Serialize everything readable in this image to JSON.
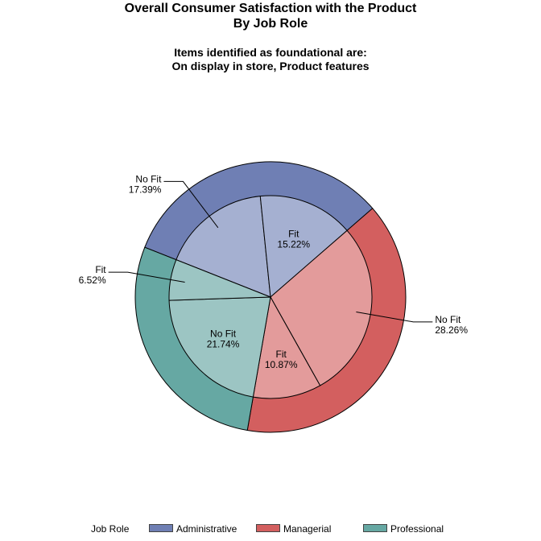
{
  "chart_data": {
    "type": "pie",
    "subtype": "nested-donut",
    "title": "Overall Consumer Satisfaction with the Product",
    "subtitle": "By Job Role",
    "note_title": "Items identified as foundational are:",
    "note_items": "On display in store, Product features",
    "outer_ring": {
      "variable": "Job Role",
      "slices": [
        {
          "name": "Administrative",
          "value": 32.61
        },
        {
          "name": "Managerial",
          "value": 39.13
        },
        {
          "name": "Professional",
          "value": 28.26
        }
      ]
    },
    "inner_pie": {
      "variable": "Fit",
      "slices": [
        {
          "group": "Administrative",
          "category": "No Fit",
          "value": 17.39,
          "label": "17.39%",
          "label_position": "outside"
        },
        {
          "group": "Administrative",
          "category": "Fit",
          "value": 15.22,
          "label": "15.22%",
          "label_position": "inside"
        },
        {
          "group": "Managerial",
          "category": "No Fit",
          "value": 28.26,
          "label": "28.26%",
          "label_position": "outside"
        },
        {
          "group": "Managerial",
          "category": "Fit",
          "value": 10.87,
          "label": "10.87%",
          "label_position": "inside"
        },
        {
          "group": "Professional",
          "category": "No Fit",
          "value": 21.74,
          "label": "21.74%",
          "label_position": "inside"
        },
        {
          "group": "Professional",
          "category": "Fit",
          "value": 6.52,
          "label": "6.52%",
          "label_position": "outside"
        }
      ]
    },
    "legend": {
      "title": "Job Role",
      "position": "bottom",
      "entries": [
        "Administrative",
        "Managerial",
        "Professional"
      ]
    }
  },
  "colors": {
    "Administrative": {
      "outer": "#6f7fb4",
      "inner": "#a5b0d1"
    },
    "Managerial": {
      "outer": "#d35f5f",
      "inner": "#e39b9b"
    },
    "Professional": {
      "outer": "#66a8a3",
      "inner": "#9cc5c3"
    }
  }
}
